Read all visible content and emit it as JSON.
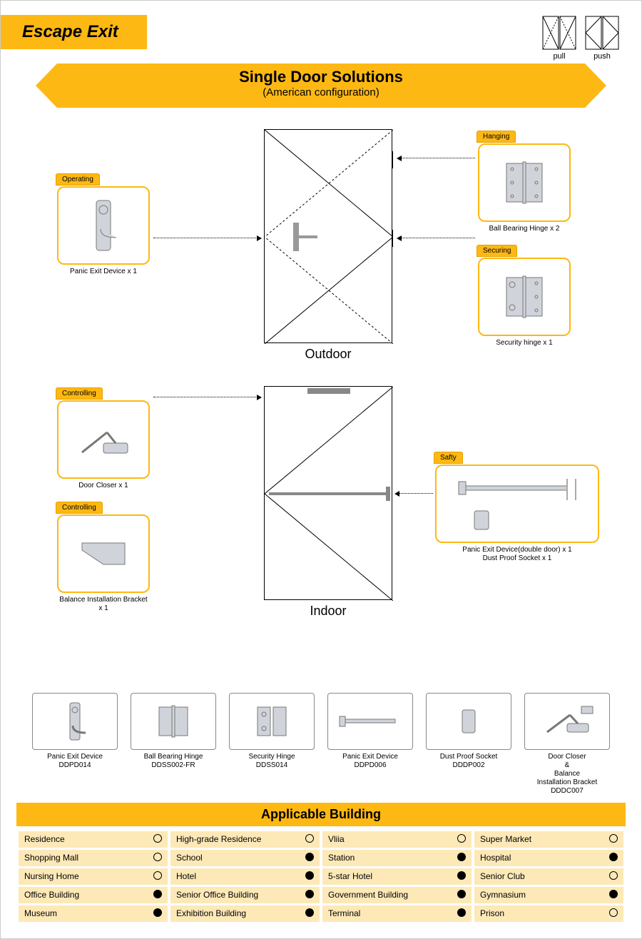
{
  "colors": {
    "accent": "#fdb813",
    "accent_light": "#fde9b8",
    "frame": "#888888",
    "text": "#000000"
  },
  "header": {
    "title": "Escape Exit",
    "icons": [
      {
        "label": "pull"
      },
      {
        "label": "push"
      }
    ]
  },
  "ribbon": {
    "line1": "Single Door Solutions",
    "line2": "(American configuration)"
  },
  "diagram": {
    "outdoor_label": "Outdoor",
    "indoor_label": "Indoor",
    "components": {
      "operating": {
        "tag": "Operating",
        "caption": "Panic Exit Device x 1"
      },
      "hanging": {
        "tag": "Hanging",
        "caption": "Ball Bearing Hinge x 2"
      },
      "securing": {
        "tag": "Securing",
        "caption": "Security hinge x 1"
      },
      "controlling1": {
        "tag": "Controlling",
        "caption": "Door Closer x 1"
      },
      "controlling2": {
        "tag": "Controlling",
        "caption": "Balance Installation Bracket x 1"
      },
      "safty": {
        "tag": "Safty",
        "caption": "Panic Exit Device(double door) x 1\nDust Proof Socket x 1"
      }
    }
  },
  "products": [
    {
      "name": "Panic Exit Device",
      "code": "DDPD014"
    },
    {
      "name": "Ball Bearing Hinge",
      "code": "DDSS002-FR"
    },
    {
      "name": "Security Hinge",
      "code": "DDSS014"
    },
    {
      "name": "Panic Exit Device",
      "code": "DDPD006"
    },
    {
      "name": "Dust Proof Socket",
      "code": "DDDP002"
    },
    {
      "name": "Door Closer\n&\nBalance\nInstallation Bracket",
      "code": "DDDC007"
    }
  ],
  "applicable": {
    "title": "Applicable Building",
    "rows": [
      [
        {
          "label": "Residence",
          "filled": false
        },
        {
          "label": "High-grade Residence",
          "filled": false
        },
        {
          "label": "Vliia",
          "filled": false
        },
        {
          "label": "Super Market",
          "filled": false
        }
      ],
      [
        {
          "label": "Shopping Mall",
          "filled": false
        },
        {
          "label": "School",
          "filled": true
        },
        {
          "label": "Station",
          "filled": true
        },
        {
          "label": "Hospital",
          "filled": true
        }
      ],
      [
        {
          "label": "Nursing Home",
          "filled": false
        },
        {
          "label": "Hotel",
          "filled": true
        },
        {
          "label": "5-star Hotel",
          "filled": true
        },
        {
          "label": "Senior Club",
          "filled": false
        }
      ],
      [
        {
          "label": "Office Building",
          "filled": true
        },
        {
          "label": "Senior Office Building",
          "filled": true
        },
        {
          "label": "Government Building",
          "filled": true
        },
        {
          "label": "Gymnasium",
          "filled": true
        }
      ],
      [
        {
          "label": "Museum",
          "filled": true
        },
        {
          "label": "Exhibition Building",
          "filled": true
        },
        {
          "label": "Terminal",
          "filled": true
        },
        {
          "label": "Prison",
          "filled": false
        }
      ]
    ]
  }
}
